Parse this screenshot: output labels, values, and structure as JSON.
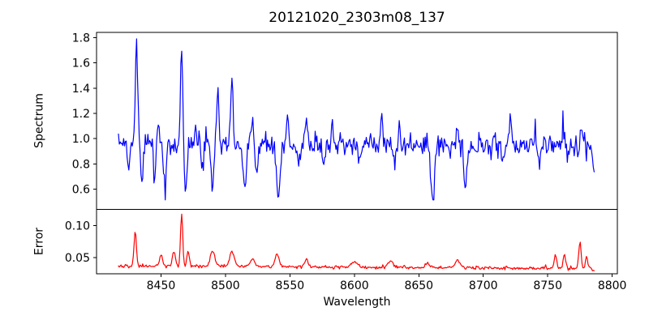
{
  "title": "20121020_2303m08_137",
  "axis_labels": {
    "x": "Wavelength",
    "y_top": "Spectrum",
    "y_bottom": "Error"
  },
  "colors": {
    "spectrum_line": "#0000ff",
    "error_line": "#ff0000",
    "axis": "#000000",
    "text": "#000000",
    "background": "#ffffff"
  },
  "chart_data": [
    {
      "id": "spectrum",
      "type": "line",
      "title": "20121020_2303m08_137",
      "xlabel": "",
      "ylabel": "Spectrum",
      "xlim": [
        8400,
        8804
      ],
      "ylim": [
        0.44,
        1.841
      ],
      "grid": false,
      "legend": "none",
      "show_x_axis": false,
      "xtick_values": [
        8450,
        8500,
        8550,
        8600,
        8650,
        8700,
        8750,
        8800
      ],
      "xtick_labels": [
        "8450",
        "8500",
        "8550",
        "8600",
        "8650",
        "8700",
        "8750",
        "8800"
      ],
      "ytick_values": [
        0.6,
        0.8,
        1.0,
        1.2,
        1.4,
        1.6,
        1.8
      ],
      "ytick_labels": [
        "0.6",
        "0.8",
        "1.0",
        "1.2",
        "1.4",
        "1.6",
        "1.8"
      ],
      "series": {
        "name": "spectrum",
        "color": "#0000ff",
        "x_start": 8417,
        "x_end": 8786,
        "n_points": 550,
        "baseline_start": 0.955,
        "baseline_end": 0.94,
        "noise_sigma": 0.046,
        "clip_min": 0.515,
        "clip_max": 1.79,
        "seed": 20121020,
        "features": [
          {
            "x": 8425,
            "amp": -0.18,
            "w": 0.9
          },
          {
            "x": 8431,
            "amp": 0.84,
            "w": 0.9
          },
          {
            "x": 8435,
            "amp": -0.3,
            "w": 1.0
          },
          {
            "x": 8445,
            "amp": -0.22,
            "w": 0.9
          },
          {
            "x": 8448,
            "amp": 0.17,
            "w": 0.8
          },
          {
            "x": 8453,
            "amp": -0.34,
            "w": 1.0
          },
          {
            "x": 8466,
            "amp": 0.72,
            "w": 0.9
          },
          {
            "x": 8469,
            "amp": -0.36,
            "w": 1.0
          },
          {
            "x": 8477,
            "amp": 0.15,
            "w": 0.8
          },
          {
            "x": 8482,
            "amp": -0.18,
            "w": 0.9
          },
          {
            "x": 8490,
            "amp": -0.37,
            "w": 0.9
          },
          {
            "x": 8494,
            "amp": 0.42,
            "w": 0.9
          },
          {
            "x": 8505,
            "amp": 0.56,
            "w": 0.9
          },
          {
            "x": 8515,
            "amp": -0.32,
            "w": 1.2
          },
          {
            "x": 8521,
            "amp": 0.23,
            "w": 0.8
          },
          {
            "x": 8524,
            "amp": -0.24,
            "w": 1.0
          },
          {
            "x": 8541,
            "amp": -0.44,
            "w": 1.3
          },
          {
            "x": 8548,
            "amp": 0.23,
            "w": 0.8
          },
          {
            "x": 8557,
            "amp": -0.16,
            "w": 0.9
          },
          {
            "x": 8563,
            "amp": 0.25,
            "w": 0.9
          },
          {
            "x": 8576,
            "amp": -0.15,
            "w": 0.9
          },
          {
            "x": 8583,
            "amp": 0.16,
            "w": 0.8
          },
          {
            "x": 8604,
            "amp": -0.13,
            "w": 0.9
          },
          {
            "x": 8621,
            "amp": 0.2,
            "w": 0.8
          },
          {
            "x": 8631,
            "amp": -0.15,
            "w": 0.9
          },
          {
            "x": 8635,
            "amp": 0.16,
            "w": 0.8
          },
          {
            "x": 8661,
            "amp": -0.41,
            "w": 1.3
          },
          {
            "x": 8680,
            "amp": 0.15,
            "w": 0.8
          },
          {
            "x": 8686,
            "amp": -0.3,
            "w": 1.1
          },
          {
            "x": 8715,
            "amp": -0.18,
            "w": 0.9
          },
          {
            "x": 8721,
            "amp": 0.25,
            "w": 0.8
          },
          {
            "x": 8740,
            "amp": 0.15,
            "w": 0.8
          },
          {
            "x": 8744,
            "amp": -0.14,
            "w": 0.9
          },
          {
            "x": 8762,
            "amp": 0.16,
            "w": 0.8
          },
          {
            "x": 8776,
            "amp": 0.2,
            "w": 0.8
          },
          {
            "x": 8786,
            "amp": -0.15,
            "w": 1.0
          }
        ]
      }
    },
    {
      "id": "error",
      "type": "line",
      "title": "",
      "xlabel": "Wavelength",
      "ylabel": "Error",
      "xlim": [
        8400,
        8804
      ],
      "ylim": [
        0.025,
        0.1255
      ],
      "grid": false,
      "legend": "none",
      "show_x_axis": true,
      "xtick_values": [
        8450,
        8500,
        8550,
        8600,
        8650,
        8700,
        8750,
        8800
      ],
      "xtick_labels": [
        "8450",
        "8500",
        "8550",
        "8600",
        "8650",
        "8700",
        "8750",
        "8800"
      ],
      "ytick_values": [
        0.05,
        0.1
      ],
      "ytick_labels": [
        "0.05",
        "0.10"
      ],
      "series": {
        "name": "error",
        "color": "#ff0000",
        "x_start": 8417,
        "x_end": 8786,
        "n_points": 550,
        "baseline_start": 0.0375,
        "baseline_end": 0.033,
        "noise_sigma": 0.0013,
        "clip_min": 0.0298,
        "clip_max": 0.118,
        "seed": 2303,
        "features": [
          {
            "x": 8430,
            "amp": 0.055,
            "w": 0.9
          },
          {
            "x": 8450,
            "amp": 0.018,
            "w": 1.2
          },
          {
            "x": 8460,
            "amp": 0.022,
            "w": 1.2
          },
          {
            "x": 8466,
            "amp": 0.086,
            "w": 0.8
          },
          {
            "x": 8471,
            "amp": 0.024,
            "w": 0.9
          },
          {
            "x": 8490,
            "amp": 0.024,
            "w": 1.8
          },
          {
            "x": 8505,
            "amp": 0.023,
            "w": 1.8
          },
          {
            "x": 8521,
            "amp": 0.012,
            "w": 1.5
          },
          {
            "x": 8540,
            "amp": 0.02,
            "w": 1.5
          },
          {
            "x": 8563,
            "amp": 0.012,
            "w": 1.5
          },
          {
            "x": 8600,
            "amp": 0.008,
            "w": 2.5
          },
          {
            "x": 8628,
            "amp": 0.01,
            "w": 2.0
          },
          {
            "x": 8657,
            "amp": 0.008,
            "w": 1.5
          },
          {
            "x": 8680,
            "amp": 0.012,
            "w": 2.0
          },
          {
            "x": 8756,
            "amp": 0.022,
            "w": 1.0
          },
          {
            "x": 8763,
            "amp": 0.021,
            "w": 1.0
          },
          {
            "x": 8775,
            "amp": 0.042,
            "w": 0.9
          },
          {
            "x": 8780,
            "amp": 0.018,
            "w": 1.0
          },
          {
            "x": 8786,
            "amp": -0.003,
            "w": 1.5
          }
        ]
      }
    }
  ]
}
